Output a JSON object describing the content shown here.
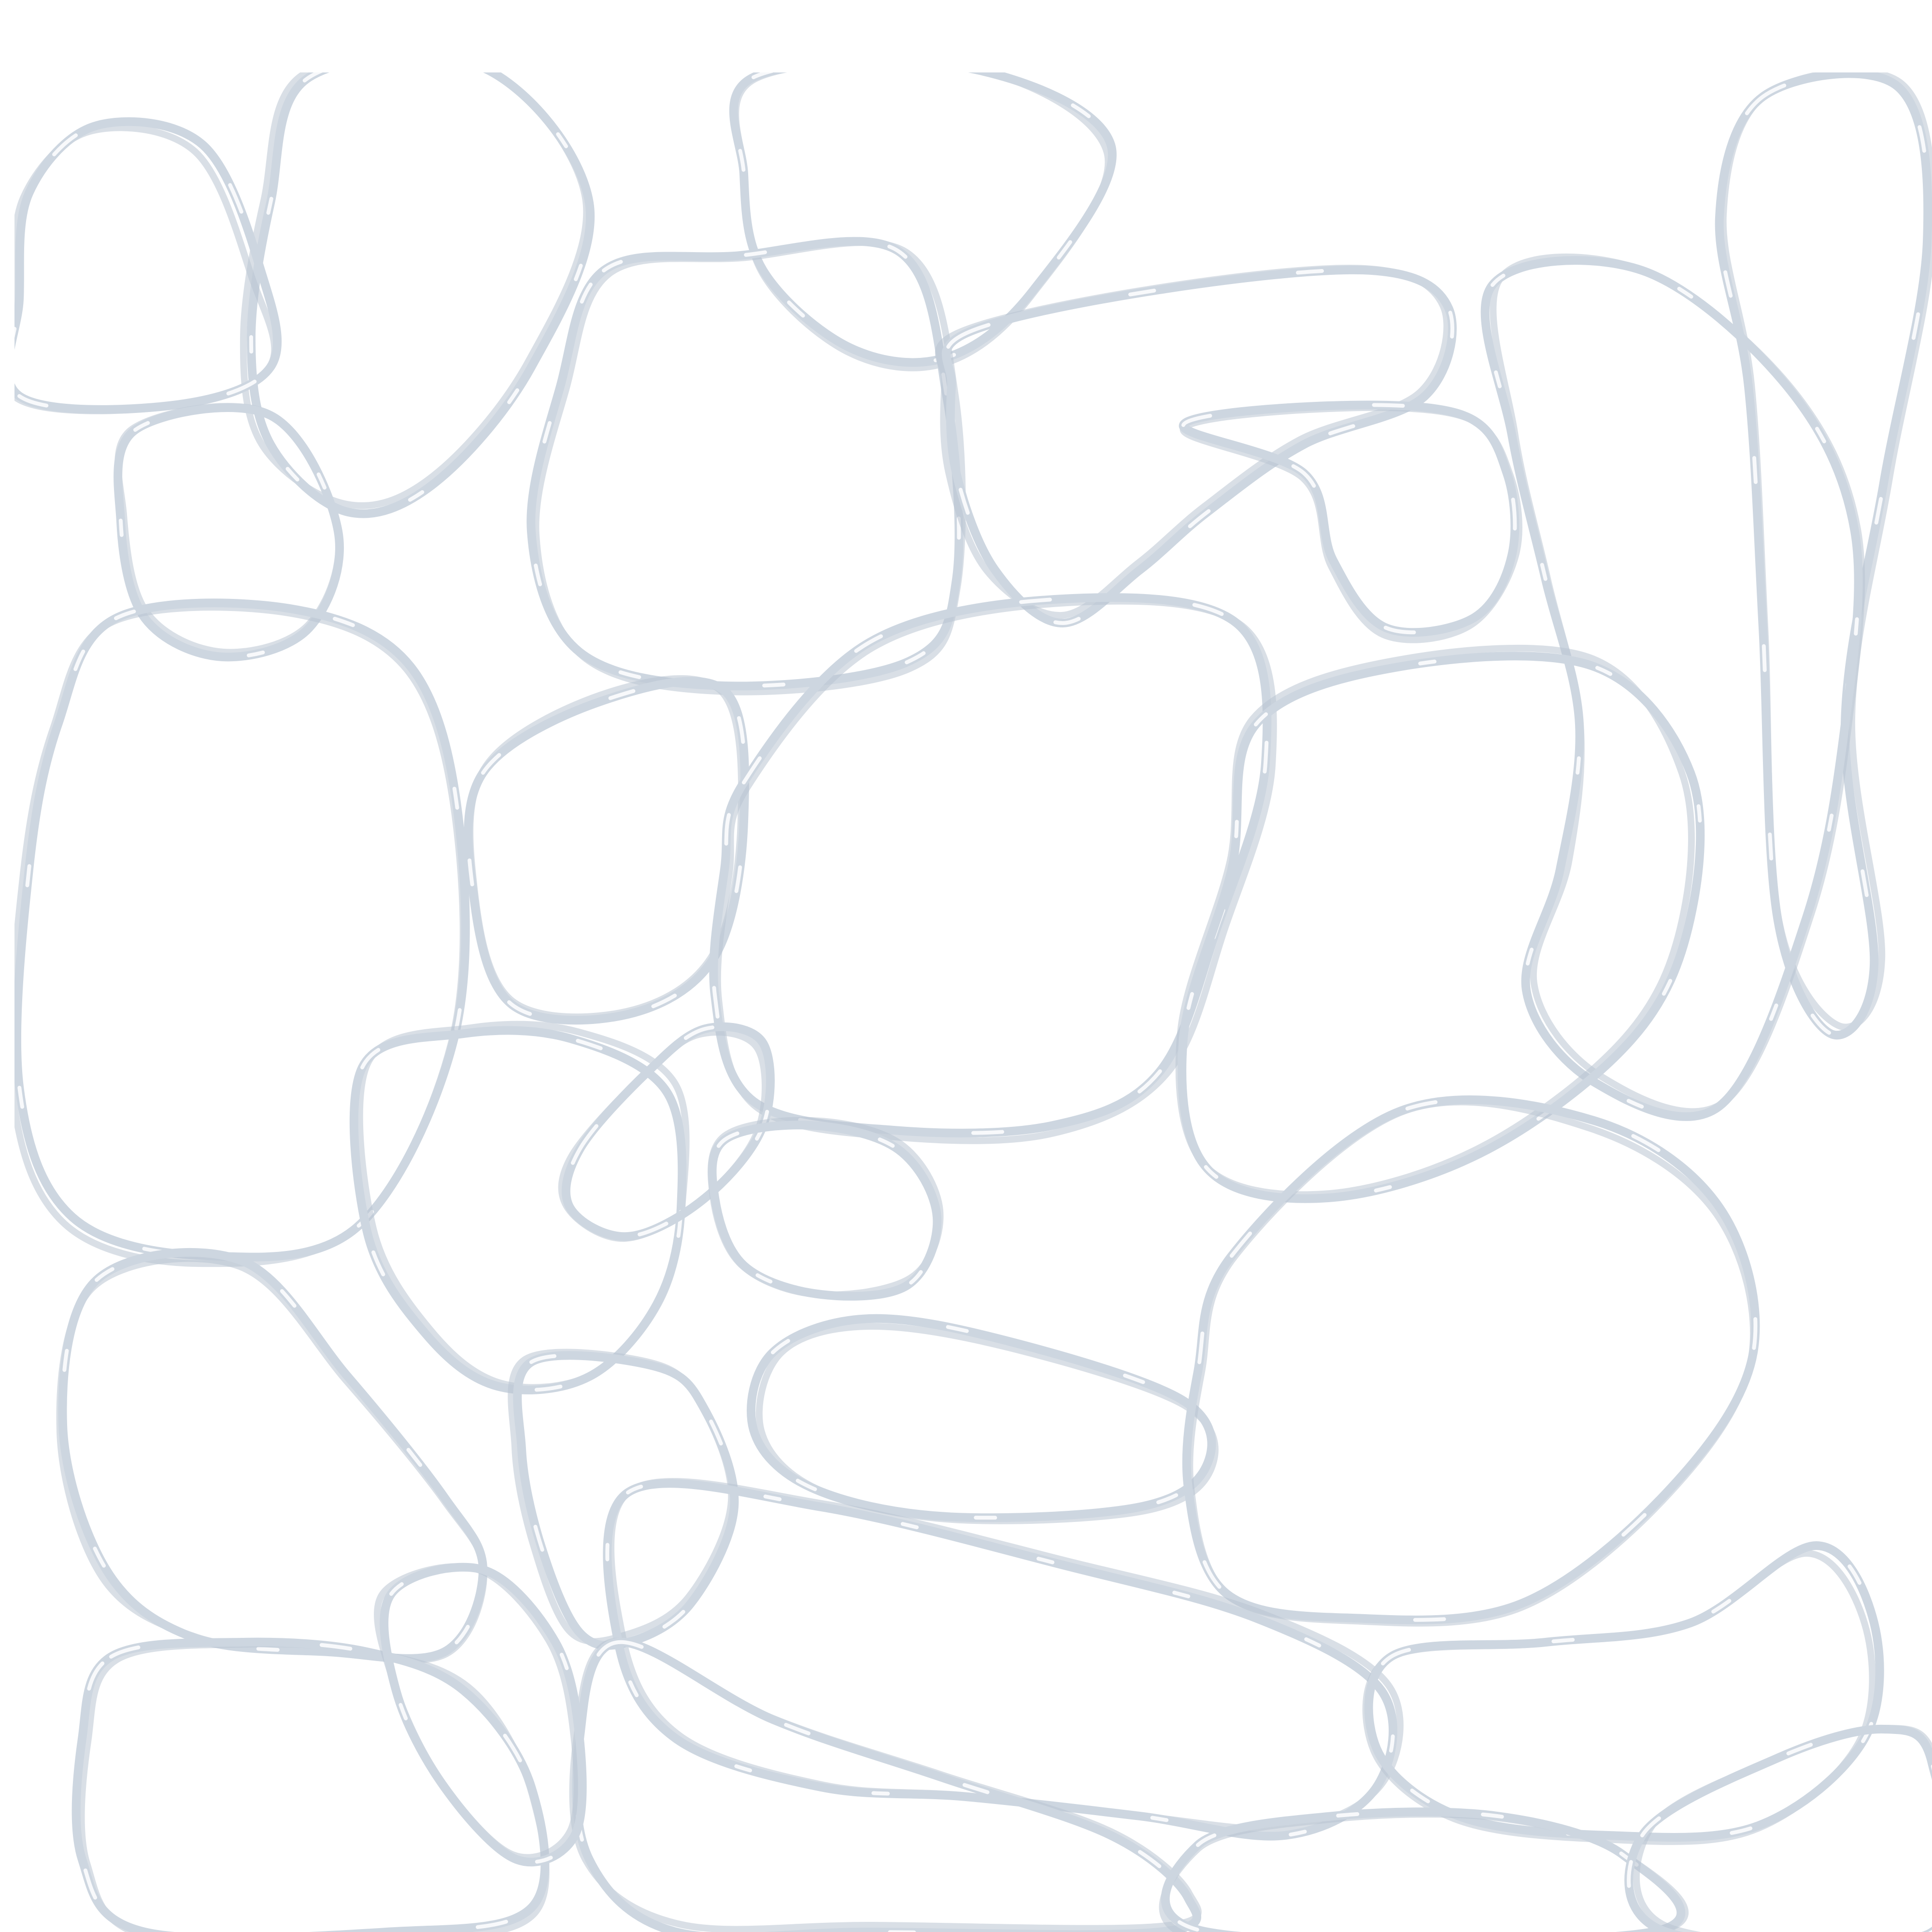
{
  "pattern": {
    "kind": "hand-drawn pebble outline pattern",
    "stroke_color": "#cdd6e0",
    "shadow_color": "#b9c5d2",
    "highlight_color": "#ffffff",
    "background_color": "#ffffff"
  }
}
